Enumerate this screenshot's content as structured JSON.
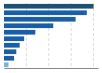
{
  "chart_data": {
    "type": "bar",
    "orientation": "horizontal",
    "categories": [
      null,
      null,
      null,
      null,
      null,
      null,
      null,
      null,
      null,
      null
    ],
    "values": [
      40,
      37,
      32,
      22,
      14,
      9,
      7,
      5.5,
      4.5,
      2
    ],
    "colors": [
      "#1a5276",
      "#1a5ea8",
      "#1a5ea8",
      "#1a5ea8",
      "#1a5ea8",
      "#1a5ea8",
      "#1a5ea8",
      "#1a5ea8",
      "#1a5ea8",
      "#7fb3d3"
    ],
    "xlim": [
      0,
      42
    ],
    "xticks": [
      10,
      20,
      30,
      40
    ],
    "grid": true,
    "tick_labels": false
  }
}
